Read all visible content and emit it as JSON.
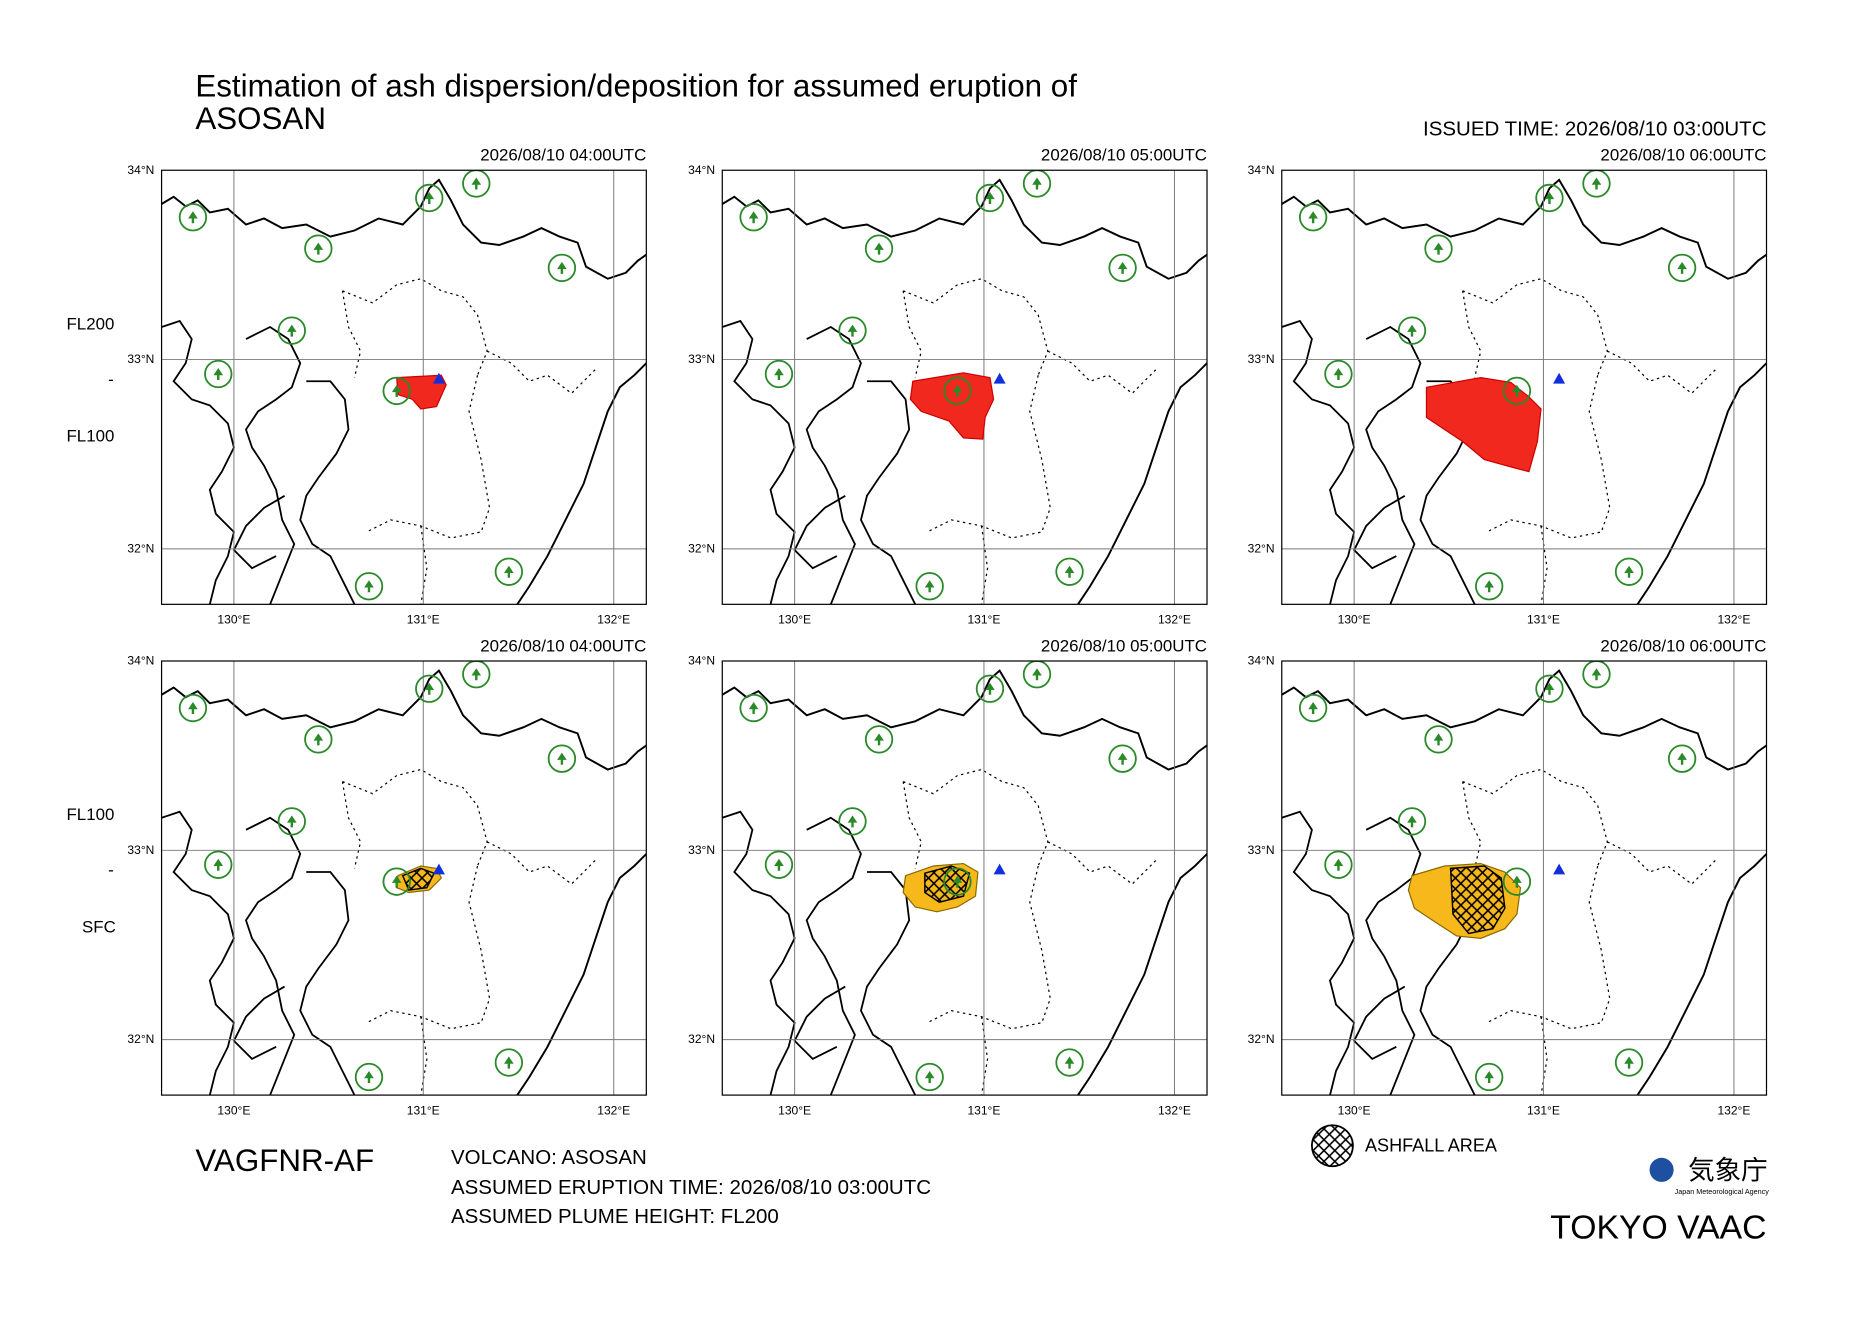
{
  "header": {
    "title_line1": "Estimation of ash dispersion/deposition for assumed eruption of",
    "title_line2": "ASOSAN",
    "issued": "ISSUED TIME: 2026/08/10 03:00UTC"
  },
  "rows": [
    {
      "level_top": "FL200",
      "separator": "-",
      "level_bottom": "FL100",
      "panels": [
        {
          "time": "2026/08/10 04:00UTC"
        },
        {
          "time": "2026/08/10 05:00UTC"
        },
        {
          "time": "2026/08/10 06:00UTC"
        }
      ]
    },
    {
      "level_top": "FL100",
      "separator": "-",
      "level_bottom": "SFC",
      "panels": [
        {
          "time": "2026/08/10 04:00UTC"
        },
        {
          "time": "2026/08/10 05:00UTC"
        },
        {
          "time": "2026/08/10 06:00UTC"
        }
      ]
    }
  ],
  "axes": {
    "lat_labels": [
      "34°N",
      "33°N",
      "32°N"
    ],
    "lon_labels": [
      "130°E",
      "131°E",
      "132°E"
    ]
  },
  "footer": {
    "product": "VAGFNR-AF",
    "volcano": "VOLCANO: ASOSAN",
    "eruption_time": "ASSUMED ERUPTION TIME: 2026/08/10 03:00UTC",
    "plume_height": "ASSUMED PLUME HEIGHT: FL200",
    "legend": "ASHFALL AREA",
    "agency_jp": "気象庁",
    "agency_en": "Japan Meteorological Agency",
    "vaac": "TOKYO VAAC"
  }
}
